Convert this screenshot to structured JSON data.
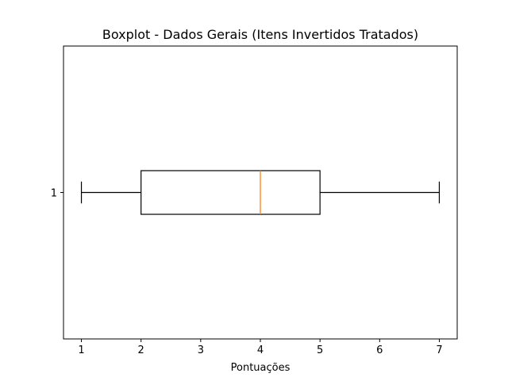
{
  "chart_data": {
    "type": "boxplot",
    "orientation": "horizontal",
    "title": "Boxplot - Dados Gerais (Itens Invertidos Tratados)",
    "xlabel": "Pontuações",
    "ylabel": "",
    "xlim": [
      0.7,
      7.3
    ],
    "xticks": [
      1,
      2,
      3,
      4,
      5,
      6,
      7
    ],
    "grid": false,
    "boxes": [
      {
        "label": "1",
        "whisker_low": 1,
        "q1": 2,
        "median": 4,
        "q3": 5,
        "whisker_high": 7,
        "outliers": []
      }
    ],
    "colors": {
      "box": "#000000",
      "median": "#ff7f0e",
      "axes": "#000000"
    }
  }
}
